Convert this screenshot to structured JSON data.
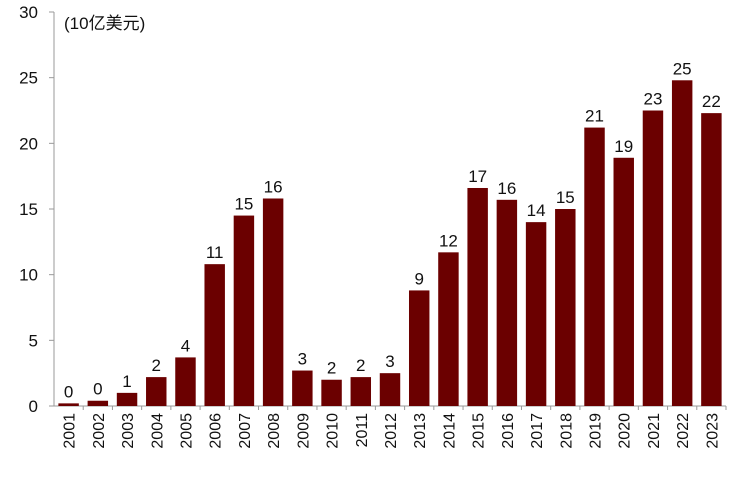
{
  "chart_data": {
    "type": "bar",
    "unit_label": "(10亿美元)",
    "categories": [
      "2001",
      "2002",
      "2003",
      "2004",
      "2005",
      "2006",
      "2007",
      "2008",
      "2009",
      "2010",
      "2011",
      "2012",
      "2013",
      "2014",
      "2015",
      "2016",
      "2017",
      "2018",
      "2019",
      "2020",
      "2021",
      "2022",
      "2023"
    ],
    "values": [
      0.2,
      0.4,
      1,
      2.2,
      3.7,
      10.8,
      14.5,
      15.8,
      2.7,
      2.0,
      2.2,
      2.5,
      8.8,
      11.7,
      16.6,
      15.7,
      14.0,
      15.0,
      21.2,
      18.9,
      22.5,
      24.8,
      22.3
    ],
    "data_labels": [
      "0",
      "0",
      "1",
      "2",
      "4",
      "11",
      "15",
      "16",
      "3",
      "2",
      "2",
      "3",
      "9",
      "12",
      "17",
      "16",
      "14",
      "15",
      "21",
      "19",
      "23",
      "25",
      "22"
    ],
    "ylim": [
      0,
      30
    ],
    "yticks": [
      0,
      5,
      10,
      15,
      20,
      25,
      30
    ],
    "grid": false,
    "bar_color": "#6b0000",
    "axis_color": "#999999"
  }
}
